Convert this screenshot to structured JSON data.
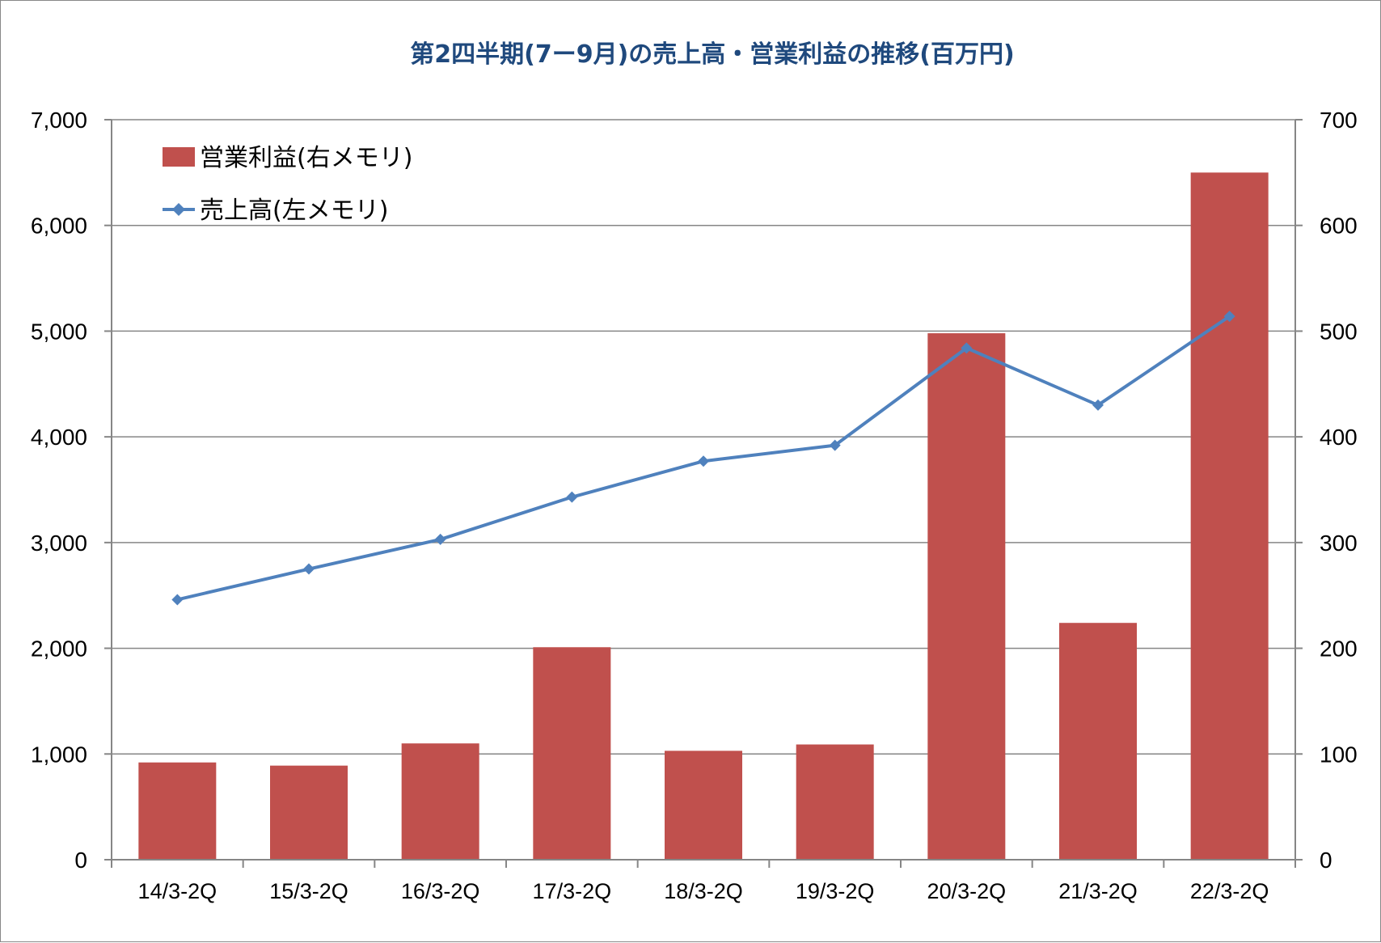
{
  "chart_data": {
    "type": "bar+line",
    "title": "第2四半期(7ー9月)の売上高・営業利益の推移(百万円)",
    "categories": [
      "14/3-2Q",
      "15/3-2Q",
      "16/3-2Q",
      "17/3-2Q",
      "18/3-2Q",
      "19/3-2Q",
      "20/3-2Q",
      "21/3-2Q",
      "22/3-2Q"
    ],
    "series": [
      {
        "name": "営業利益(右メモリ)",
        "type": "bar",
        "axis": "right",
        "color": "#C0504D",
        "values": [
          92,
          89,
          110,
          201,
          103,
          109,
          498,
          224,
          650
        ]
      },
      {
        "name": "売上高(左メモリ)",
        "type": "line",
        "axis": "left",
        "color": "#4F81BD",
        "marker": "diamond",
        "values": [
          2460,
          2750,
          3030,
          3430,
          3770,
          3920,
          4840,
          4300,
          5140
        ]
      }
    ],
    "left_axis": {
      "ylim": [
        0,
        7000
      ],
      "ticks": [
        "0",
        "1,000",
        "2,000",
        "3,000",
        "4,000",
        "5,000",
        "6,000",
        "7,000"
      ]
    },
    "right_axis": {
      "ylim": [
        0,
        700
      ],
      "ticks": [
        "0",
        "100",
        "200",
        "300",
        "400",
        "500",
        "600",
        "700"
      ]
    },
    "grid": true,
    "legend_position": "top-left",
    "title_color": "#1F497D"
  }
}
